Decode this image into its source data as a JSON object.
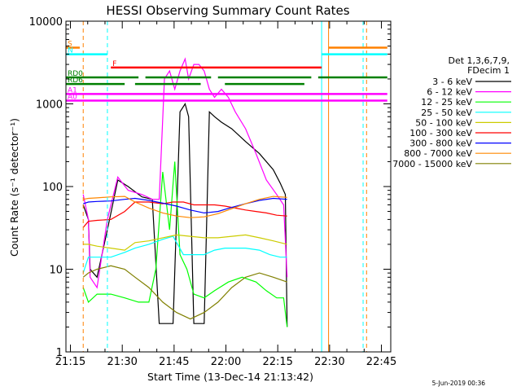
{
  "chart_data": {
    "type": "line",
    "title": "HESSI Observing Summary Count Rates",
    "xlabel": "Start Time (13-Dec-14 21:13:42)",
    "ylabel": "Count Rate (s⁻¹ detector⁻¹)",
    "x_unit": "minutes after 21:13:42",
    "xlim": [
      0,
      94
    ],
    "ylim": [
      1,
      10000
    ],
    "yscale": "log",
    "x_ticks": [
      "21:15",
      "21:30",
      "21:45",
      "22:00",
      "22:15",
      "22:30",
      "22:45"
    ],
    "y_ticks": [
      "1",
      "10",
      "100",
      "1000",
      "10000"
    ],
    "legend_title": [
      "Det 1,3,6,7,9,",
      "FDecim 1"
    ],
    "legend_position": "right",
    "footer_stamp": "5-Jun-2019 00:36",
    "series": [
      {
        "name": "3 - 6 keV",
        "color": "#000000",
        "x": [
          5,
          6.5,
          7,
          9,
          12,
          15,
          18,
          22,
          25,
          27,
          29,
          31,
          33,
          34.5,
          35.5,
          37,
          38.5,
          40,
          41.5,
          43,
          45,
          48,
          52,
          56,
          60,
          62,
          63.5,
          64
        ],
        "y": [
          60,
          40,
          10,
          8,
          30,
          120,
          100,
          75,
          70,
          2.2,
          2.2,
          2.2,
          800,
          1000,
          700,
          2.2,
          2.2,
          2.2,
          800,
          700,
          600,
          500,
          350,
          250,
          160,
          110,
          80,
          2
        ]
      },
      {
        "name": "6 - 12 keV",
        "color": "#ff00ff",
        "x": [
          5,
          6.5,
          7,
          9,
          12,
          15,
          18,
          22,
          25,
          27,
          28.5,
          30,
          31.5,
          33,
          34.5,
          35.5,
          37,
          38.5,
          40,
          41.5,
          43,
          45,
          47,
          49,
          52,
          55,
          58,
          61,
          63,
          64
        ],
        "y": [
          80,
          40,
          8,
          6,
          40,
          130,
          90,
          80,
          70,
          70,
          2000,
          2500,
          1500,
          2500,
          3500,
          2000,
          3000,
          3000,
          2500,
          1500,
          1200,
          1500,
          1200,
          800,
          500,
          250,
          120,
          80,
          60,
          8
        ]
      },
      {
        "name": "12 - 25 keV",
        "color": "#00ff00",
        "x": [
          5,
          6.5,
          9,
          13,
          17,
          21,
          24,
          26,
          28,
          30,
          31.5,
          33,
          35,
          37,
          40,
          43,
          47,
          51,
          55,
          58,
          61,
          63,
          64
        ],
        "y": [
          6,
          4,
          5,
          5,
          4.5,
          4,
          4,
          10,
          150,
          30,
          200,
          15,
          10,
          5,
          4.5,
          5.5,
          7,
          8,
          7,
          5.5,
          4.5,
          4.5,
          2
        ]
      },
      {
        "name": "25 - 50 keV",
        "color": "#00ffff",
        "x": [
          5,
          6.5,
          9,
          13,
          17,
          20,
          24,
          28,
          31,
          34,
          37,
          40,
          43,
          46,
          49,
          52,
          56,
          59,
          62,
          64
        ],
        "y": [
          9,
          14,
          14,
          14,
          16,
          18,
          20,
          23,
          25,
          15,
          15,
          15,
          17,
          18,
          18,
          18,
          17,
          15,
          14,
          14
        ]
      },
      {
        "name": "50 - 100 keV",
        "color": "#cccc00",
        "x": [
          5,
          6.5,
          9,
          13,
          17,
          20,
          24,
          28,
          32,
          36,
          40,
          44,
          48,
          52,
          56,
          60,
          64
        ],
        "y": [
          20,
          20,
          19,
          18,
          17,
          21,
          22,
          24,
          26,
          25,
          24,
          24,
          25,
          26,
          24,
          22,
          20
        ]
      },
      {
        "name": "100 - 300 keV",
        "color": "#ff0000",
        "x": [
          5,
          6.5,
          9,
          13,
          17,
          20,
          24,
          28,
          31,
          34,
          37,
          40,
          43,
          46,
          49,
          52,
          55,
          58,
          61,
          64
        ],
        "y": [
          32,
          38,
          39,
          40,
          50,
          65,
          65,
          62,
          65,
          65,
          60,
          60,
          60,
          58,
          55,
          52,
          50,
          48,
          45,
          44
        ]
      },
      {
        "name": "300 - 800 keV",
        "color": "#0000ff",
        "x": [
          5,
          6.5,
          9,
          13,
          17,
          20,
          24,
          28,
          32,
          36,
          40,
          44,
          48,
          52,
          56,
          60,
          64
        ],
        "y": [
          62,
          65,
          66,
          67,
          70,
          72,
          68,
          63,
          58,
          52,
          48,
          50,
          56,
          62,
          68,
          72,
          70
        ]
      },
      {
        "name": "800 - 7000 keV",
        "color": "#ff8800",
        "x": [
          5,
          6.5,
          9,
          13,
          17,
          20,
          24,
          28,
          32,
          36,
          40,
          44,
          48,
          52,
          56,
          60,
          64
        ],
        "y": [
          70,
          72,
          73,
          75,
          76,
          65,
          55,
          48,
          44,
          42,
          43,
          47,
          54,
          62,
          70,
          76,
          74
        ]
      },
      {
        "name": "7000 - 15000 keV",
        "color": "#808000",
        "x": [
          5,
          6.5,
          9,
          13,
          17,
          20,
          24,
          28,
          32,
          36,
          40,
          44,
          48,
          52,
          56,
          60,
          64
        ],
        "y": [
          8,
          9,
          10,
          11,
          10,
          8,
          6,
          4,
          3,
          2.5,
          3,
          4,
          6,
          8,
          9,
          8,
          7
        ]
      }
    ],
    "flags": [
      {
        "label": "S",
        "color": "#ff8000",
        "y": 0.92,
        "segments": [
          [
            0,
            4
          ],
          [
            76,
            93
          ]
        ]
      },
      {
        "label": "N",
        "color": "#00ffff",
        "y": 0.9,
        "segments": [
          [
            0,
            12
          ],
          [
            74,
            93
          ]
        ]
      },
      {
        "label": "F",
        "color": "#ff0000",
        "y": 0.86,
        "segments": [
          [
            13,
            74
          ]
        ]
      },
      {
        "label": "RD0",
        "color": "#008000",
        "y": 0.83,
        "segments": [
          [
            0,
            21
          ],
          [
            23,
            42
          ],
          [
            44,
            71
          ],
          [
            73,
            93
          ]
        ]
      },
      {
        "label": "RD6",
        "color": "#008000",
        "y": 0.81,
        "segments": [
          [
            0,
            17
          ],
          [
            20,
            39
          ],
          [
            46,
            69
          ]
        ]
      },
      {
        "label": "A1",
        "color": "#ff00ff",
        "y": 0.78,
        "segments": [
          [
            0,
            93
          ]
        ]
      },
      {
        "label": "A0",
        "color": "#ff00ff",
        "y": 0.76,
        "segments": [
          [
            0,
            93
          ]
        ]
      }
    ],
    "vlines": [
      {
        "color": "#ff8000",
        "x": 5,
        "dashed": true
      },
      {
        "color": "#00ffff",
        "x": 12,
        "dashed": true
      },
      {
        "color": "#00ffff",
        "x": 74,
        "dashed": false
      },
      {
        "color": "#ff8000",
        "x": 76,
        "dashed": false
      },
      {
        "color": "#00ffff",
        "x": 86,
        "dashed": true
      },
      {
        "color": "#ff8000",
        "x": 87,
        "dashed": true
      }
    ]
  }
}
